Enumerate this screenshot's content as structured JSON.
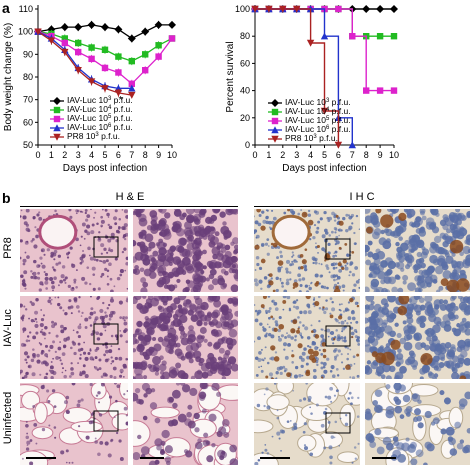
{
  "panel_labels": {
    "a": "a",
    "b": "b"
  },
  "star": "*",
  "chart_data": [
    {
      "type": "line",
      "ylabel": "Body weight change (%)",
      "xlabel": "Days post infection",
      "x": [
        0,
        1,
        2,
        3,
        4,
        5,
        6,
        7,
        8,
        9,
        10
      ],
      "ylim": [
        50,
        110
      ],
      "yticks": [
        50,
        60,
        70,
        80,
        90,
        100,
        110
      ],
      "series": [
        {
          "name": "IAV-Luc 10³ p.f.u.",
          "label_html": "IAV-Luc 10<sup>3</sup> p.f.u.",
          "color": "#000000",
          "marker": "diamond",
          "x": [
            0,
            1,
            2,
            3,
            4,
            5,
            6,
            7,
            8,
            9,
            10
          ],
          "values": [
            100,
            101,
            102,
            102,
            103,
            102,
            101,
            97,
            100,
            103,
            103
          ]
        },
        {
          "name": "IAV-Luc 10⁴ p.f.u.",
          "label_html": "IAV-Luc 10<sup>4</sup> p.f.u.",
          "color": "#22bb22",
          "marker": "square",
          "x": [
            0,
            1,
            2,
            3,
            4,
            5,
            6,
            7,
            8,
            9,
            10
          ],
          "values": [
            100,
            99,
            97,
            95,
            93,
            92,
            89,
            87,
            90,
            94,
            97
          ]
        },
        {
          "name": "IAV-Luc 10⁵ p.f.u.",
          "label_html": "IAV-Luc 10<sup>5</sup> p.f.u.",
          "color": "#dd22cc",
          "marker": "square",
          "x": [
            0,
            1,
            2,
            3,
            4,
            5,
            6,
            7,
            8,
            9,
            10
          ],
          "values": [
            100,
            98,
            95,
            91,
            88,
            84,
            82,
            77,
            83,
            89,
            97
          ]
        },
        {
          "name": "IAV-Luc 10⁶ p.f.u.",
          "label_html": "IAV-Luc 10<sup>6</sup> p.f.u.",
          "color": "#2233cc",
          "marker": "triangle",
          "x": [
            0,
            1,
            2,
            3,
            4,
            5,
            6,
            7
          ],
          "values": [
            100,
            97,
            92,
            84,
            79,
            76,
            75,
            75
          ]
        },
        {
          "name": "PR8 10³ p.f.u.",
          "label_html": "PR8 10<sup>3</sup> p.f.u.",
          "color": "#aa2222",
          "marker": "triangle-down",
          "x": [
            0,
            1,
            2,
            3,
            4,
            5,
            6,
            7
          ],
          "values": [
            100,
            96,
            91,
            83,
            78,
            75,
            73,
            72
          ]
        }
      ]
    },
    {
      "type": "line",
      "ylabel": "Percent survival",
      "xlabel": "Days post infection",
      "x": [
        0,
        1,
        2,
        3,
        4,
        5,
        6,
        7,
        8,
        9,
        10
      ],
      "ylim": [
        0,
        100
      ],
      "yticks": [
        0,
        20,
        40,
        60,
        80,
        100
      ],
      "series": [
        {
          "name": "IAV-Luc 10³ p.f.u.",
          "label_html": "IAV-Luc 10<sup>3</sup> p.f.u.",
          "color": "#000000",
          "marker": "diamond",
          "steps": [
            [
              0,
              100
            ],
            [
              10,
              100
            ]
          ]
        },
        {
          "name": "IAV-Luc 10⁴ p.f.u.",
          "label_html": "IAV-Luc 10<sup>4</sup> p.f.u.",
          "color": "#22bb22",
          "marker": "square",
          "steps": [
            [
              0,
              100
            ],
            [
              7,
              100
            ],
            [
              7,
              80
            ],
            [
              10,
              80
            ]
          ]
        },
        {
          "name": "IAV-Luc 10⁵ p.f.u.",
          "label_html": "IAV-Luc 10<sup>5</sup> p.f.u.",
          "color": "#dd22cc",
          "marker": "square",
          "steps": [
            [
              0,
              100
            ],
            [
              7,
              100
            ],
            [
              7,
              80
            ],
            [
              8,
              80
            ],
            [
              8,
              40
            ],
            [
              10,
              40
            ]
          ]
        },
        {
          "name": "IAV-Luc 10⁶ p.f.u.",
          "label_html": "IAV-Luc 10<sup>6</sup> p.f.u.",
          "color": "#2233cc",
          "marker": "triangle",
          "steps": [
            [
              0,
              100
            ],
            [
              5,
              100
            ],
            [
              5,
              80
            ],
            [
              6,
              80
            ],
            [
              6,
              20
            ],
            [
              7,
              20
            ],
            [
              7,
              0
            ]
          ]
        },
        {
          "name": "PR8 10³ p.f.u.",
          "label_html": "PR8 10<sup>3</sup> p.f.u.",
          "color": "#aa2222",
          "marker": "triangle-down",
          "steps": [
            [
              0,
              100
            ],
            [
              4,
              100
            ],
            [
              4,
              75
            ],
            [
              5,
              75
            ],
            [
              5,
              25
            ],
            [
              6,
              25
            ],
            [
              6,
              0
            ]
          ]
        }
      ]
    }
  ],
  "histology": {
    "he_title": "H & E",
    "ihc_title": "I H C",
    "rows": [
      "PR8",
      "IAV-Luc",
      "Uninfected"
    ]
  },
  "colors": {
    "he_bg": "#e9c3cd",
    "he_dense": "#6a3f7a",
    "he_light": "#f2dfe5",
    "ihc_bg": "#e6dccb",
    "ihc_nuclei": "#5a6fa6",
    "ihc_brown": "#8a4a1e"
  }
}
